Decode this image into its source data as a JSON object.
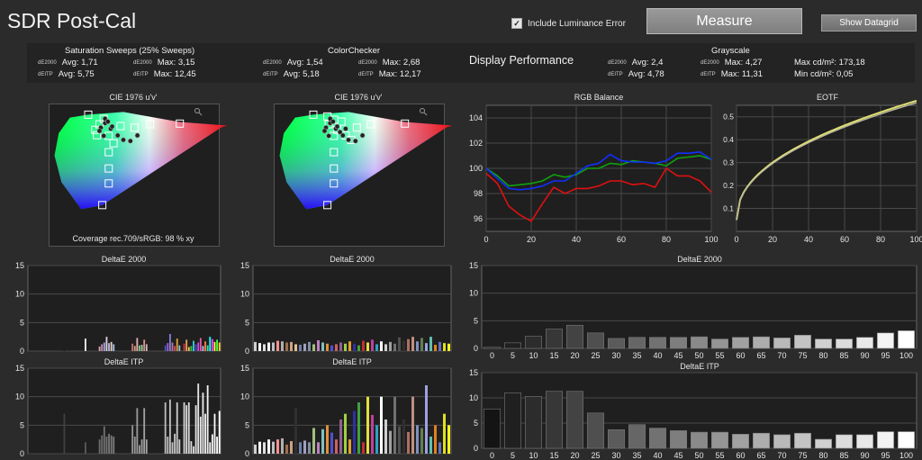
{
  "header": {
    "title": "SDR Post-Cal",
    "include_luminance_label": "Include Luminance Error",
    "measure_label": "Measure",
    "datagrid_label": "Show Datagrid"
  },
  "stats": {
    "saturation": {
      "title": "Saturation Sweeps (25% Sweeps)",
      "r1a_tag": "dE2000",
      "r1a": "Avg: 1,71",
      "r1b_tag": "dE2000",
      "r1b": "Max: 3,15",
      "r2a_tag": "dEITP",
      "r2a": "Avg: 5,75",
      "r2b_tag": "dEITP",
      "r2b": "Max: 12,45"
    },
    "colorchecker": {
      "title": "ColorChecker",
      "r1a_tag": "dE2000",
      "r1a": "Avg: 1,54",
      "r1b_tag": "dE2000",
      "r1b": "Max: 2,68",
      "r2a_tag": "dEITP",
      "r2a": "Avg: 5,18",
      "r2b_tag": "dEITP",
      "r2b": "Max: 12,17"
    },
    "performance_title": "Display Performance",
    "grayscale": {
      "title": "Grayscale",
      "r1a_tag": "dE2000",
      "r1a": "Avg: 2,4",
      "r1b_tag": "dE2000",
      "r1b": "Max: 4,27",
      "r2a_tag": "dEITP",
      "r2a": "Avg: 4,78",
      "r2b_tag": "dEITP",
      "r2b": "Max: 11,31",
      "max_cd": "Max cd/m²:  173,18",
      "min_cd": "Min cd/m²:  0,05"
    }
  },
  "chart_data": [
    {
      "type": "scatter",
      "title": "CIE 1976 u'v'",
      "footer": "Coverage rec.709/sRGB:  98 % xy",
      "targets_uv": [
        [
          0.451,
          0.523
        ],
        [
          0.125,
          0.563
        ],
        [
          0.175,
          0.158
        ],
        [
          0.198,
          0.468
        ],
        [
          0.198,
          0.395
        ],
        [
          0.198,
          0.322
        ],
        [
          0.198,
          0.255
        ],
        [
          0.18,
          0.544
        ],
        [
          0.165,
          0.52
        ],
        [
          0.15,
          0.495
        ],
        [
          0.156,
          0.471
        ],
        [
          0.24,
          0.512
        ],
        [
          0.29,
          0.505
        ],
        [
          0.345,
          0.52
        ],
        [
          0.215,
          0.435
        ]
      ],
      "measured_uv": [
        [
          0.205,
          0.5
        ],
        [
          0.185,
          0.525
        ],
        [
          0.17,
          0.505
        ],
        [
          0.165,
          0.49
        ],
        [
          0.18,
          0.468
        ],
        [
          0.23,
          0.47
        ],
        [
          0.25,
          0.45
        ],
        [
          0.275,
          0.445
        ],
        [
          0.3,
          0.47
        ],
        [
          0.21,
          0.51
        ],
        [
          0.185,
          0.545
        ],
        [
          0.195,
          0.532
        ]
      ]
    },
    {
      "type": "scatter",
      "title": "CIE 1976 u'v'",
      "targets_uv": [
        [
          0.451,
          0.523
        ],
        [
          0.125,
          0.563
        ],
        [
          0.175,
          0.158
        ],
        [
          0.198,
          0.468
        ],
        [
          0.198,
          0.395
        ],
        [
          0.198,
          0.322
        ],
        [
          0.198,
          0.255
        ],
        [
          0.225,
          0.532
        ],
        [
          0.18,
          0.52
        ],
        [
          0.21,
          0.495
        ],
        [
          0.24,
          0.47
        ],
        [
          0.28,
          0.505
        ],
        [
          0.33,
          0.52
        ],
        [
          0.26,
          0.45
        ],
        [
          0.175,
          0.555
        ],
        [
          0.2,
          0.54
        ]
      ],
      "measured_uv": [
        [
          0.205,
          0.5
        ],
        [
          0.185,
          0.525
        ],
        [
          0.17,
          0.505
        ],
        [
          0.165,
          0.49
        ],
        [
          0.18,
          0.468
        ],
        [
          0.23,
          0.47
        ],
        [
          0.25,
          0.45
        ],
        [
          0.275,
          0.445
        ],
        [
          0.3,
          0.47
        ],
        [
          0.21,
          0.51
        ],
        [
          0.185,
          0.545
        ],
        [
          0.195,
          0.532
        ],
        [
          0.24,
          0.5
        ],
        [
          0.22,
          0.485
        ]
      ]
    },
    {
      "type": "line",
      "title": "RGB Balance",
      "x": [
        0,
        5,
        10,
        15,
        20,
        25,
        30,
        35,
        40,
        45,
        50,
        55,
        60,
        65,
        70,
        75,
        80,
        85,
        90,
        95,
        100
      ],
      "xlim": [
        0,
        100
      ],
      "ylim": [
        95,
        105
      ],
      "xticks": [
        0,
        20,
        40,
        60,
        80,
        100
      ],
      "yticks": [
        96,
        98,
        100,
        102,
        104
      ],
      "series": [
        {
          "color": "#e01010",
          "values": [
            99.6,
            98.8,
            97.0,
            96.3,
            95.8,
            97.2,
            98.5,
            98.0,
            98.4,
            98.4,
            98.6,
            99.0,
            99.0,
            98.7,
            98.8,
            98.5,
            100.0,
            99.4,
            99.4,
            99.0,
            98.1
          ]
        },
        {
          "color": "#10a010",
          "values": [
            100.0,
            99.4,
            98.6,
            98.7,
            98.8,
            99.0,
            99.5,
            99.3,
            99.5,
            100.0,
            100.0,
            100.4,
            100.3,
            100.6,
            100.5,
            100.4,
            100.2,
            100.8,
            100.9,
            101.0,
            100.7
          ]
        },
        {
          "color": "#1030ff",
          "values": [
            100.0,
            99.2,
            98.4,
            98.3,
            98.4,
            98.6,
            99.0,
            99.0,
            99.6,
            100.2,
            100.4,
            101.1,
            100.6,
            100.5,
            100.5,
            100.4,
            100.6,
            101.2,
            101.2,
            101.3,
            100.7
          ]
        }
      ]
    },
    {
      "type": "line",
      "title": "EOTF",
      "xlim": [
        0,
        100
      ],
      "ylim": [
        0,
        0.55
      ],
      "xticks": [
        0,
        20,
        40,
        60,
        80,
        100
      ],
      "yticks": [
        0.1,
        0.2,
        0.3,
        0.4,
        0.5
      ],
      "gamma": 2.2
    },
    {
      "type": "bar",
      "title": "DeltaE 2000",
      "ylim": [
        0,
        15
      ],
      "yticks": [
        0,
        5,
        10,
        15
      ],
      "values": [
        0,
        0,
        0,
        0,
        0,
        0,
        0,
        0,
        0,
        0,
        0,
        0,
        0,
        0,
        0,
        0.2,
        0,
        0,
        0,
        0,
        0,
        0,
        0,
        0,
        2.2,
        0,
        0,
        0,
        0,
        0,
        0.8,
        1.2,
        1.5,
        2.5,
        1.4,
        1.6,
        1.2,
        0,
        0,
        0,
        0,
        0,
        0,
        0,
        1.3,
        0.9,
        2.3,
        1.0,
        1.1,
        2.0,
        1.2,
        0,
        0,
        0,
        0,
        0,
        0,
        0,
        1.0,
        1.4,
        3.0,
        1.5,
        0.9,
        2.2,
        1.0,
        0,
        1.3,
        2.0,
        0.7,
        0.9,
        1.8,
        1.2,
        1.5,
        2.3,
        0.9,
        1.7,
        1.0,
        2.5,
        2.1,
        1.6,
        2.0,
        1.5
      ],
      "colors": [
        "#606060",
        "#888",
        "#aaa",
        "#ccc",
        "#e8e8e8",
        "#606060",
        "#888",
        "#aaa",
        "#ccc",
        "#e8e8e8",
        "#606060",
        "#888",
        "#aaa",
        "#ccc",
        "#e8e8e8",
        "#1a1a1a",
        "#303030",
        "#606060",
        "#888",
        "#aaa",
        "#ccc",
        "#e8e8e8",
        "#f5f5f5",
        "#fff",
        "#f0f0f0",
        "#1a1a1a",
        "#303030",
        "#606060",
        "#888",
        "#aaa",
        "#d8a8a8",
        "#c890c0",
        "#a8a8d8",
        "#e0d0e0",
        "#b8b8e8",
        "#e8d8b8",
        "#a8c8e8",
        "#1a1a1a",
        "#303030",
        "#606060",
        "#888",
        "#aaa",
        "#ccc",
        "#e8e8e8",
        "#d07070",
        "#c8a080",
        "#e8b0b0",
        "#80c880",
        "#a0d0a0",
        "#e09090",
        "#c0c0c0",
        "#1a1a1a",
        "#303030",
        "#606060",
        "#888",
        "#aaa",
        "#ccc",
        "#e8e8e8",
        "#5050c0",
        "#a060d0",
        "#8080e0",
        "#c070b0",
        "#d05050",
        "#e0a040",
        "#90c0e0",
        "#1a1a1a",
        "#e03030",
        "#e0a060",
        "#e0d060",
        "#40c040",
        "#40d0d0",
        "#3050e0",
        "#e040e0",
        "#e060a0",
        "#c0c0ff",
        "#ff8040",
        "#40e0a0",
        "#20ffff",
        "#ff40ff",
        "#ffff40",
        "#40ff40",
        "#ffd020"
      ]
    },
    {
      "type": "bar",
      "title": "DeltaE 2000",
      "ylim": [
        0,
        15
      ],
      "yticks": [
        0,
        5,
        10,
        15
      ],
      "values": [
        1.6,
        1.4,
        1.2,
        1.5,
        1.5,
        1.8,
        1.7,
        1.5,
        1.6,
        1.2,
        1.1,
        1.3,
        1.6,
        1.2,
        1.9,
        1.5,
        1.3,
        1.0,
        1.2,
        1.5,
        1.3,
        1.7,
        1.3,
        1.0,
        1.8,
        1.5,
        2.0,
        1.2,
        1.7,
        1.2,
        1.6,
        1.3,
        2.4,
        1.8,
        2.1,
        2.5,
        1.7,
        2.3,
        1.4,
        2.5,
        1.1,
        1.6,
        1.4,
        1.3
      ],
      "colors": [
        "#d0d0d0",
        "#fff",
        "#e0e0e0",
        "#f5f5f5",
        "#c0c0c0",
        "#ff9090",
        "#b0b0b0",
        "#a07050",
        "#d0a080",
        "#e0c090",
        "#7080b0",
        "#a0a0c0",
        "#8090a0",
        "#a0c080",
        "#c080c0",
        "#80c0c0",
        "#e09040",
        "#5050d0",
        "#d06060",
        "#906090",
        "#a0d040",
        "#e0a030",
        "#3030a0",
        "#40a040",
        "#c03030",
        "#e0e040",
        "#c040a0",
        "#30a0c0",
        "#ffffff",
        "#d0d0d0",
        "#a0a0a0",
        "#707070",
        "#505050",
        "#303030",
        "#b07060",
        "#c09080",
        "#8090c0",
        "#608050",
        "#a0a0e0",
        "#60c0b0",
        "#e08020",
        "#6070c0",
        "#e0e020",
        "#ffff20"
      ]
    },
    {
      "type": "bar",
      "title": "DeltaE 2000",
      "categories": [
        "0",
        "5",
        "10",
        "15",
        "20",
        "25",
        "30",
        "35",
        "40",
        "45",
        "50",
        "55",
        "60",
        "65",
        "70",
        "75",
        "80",
        "85",
        "90",
        "95",
        "100"
      ],
      "ylim": [
        0,
        15
      ],
      "yticks": [
        0,
        5,
        10,
        15
      ],
      "values": [
        0.2,
        1.0,
        2.2,
        3.5,
        4.2,
        2.8,
        1.8,
        2.0,
        2.0,
        2.0,
        2.1,
        1.7,
        2.0,
        2.1,
        1.9,
        2.4,
        1.7,
        1.7,
        2.0,
        2.8,
        3.2
      ]
    },
    {
      "type": "bar",
      "title": "DeltaE ITP",
      "ylim": [
        0,
        15
      ],
      "yticks": [
        0,
        5,
        10,
        15
      ],
      "values": [
        0,
        0,
        0,
        0,
        0,
        0,
        0,
        0,
        0,
        0,
        0,
        0,
        0,
        0,
        0,
        7.0,
        0,
        0,
        0,
        0,
        0,
        0,
        0,
        0,
        2.0,
        0,
        0,
        0,
        0,
        0,
        2.5,
        3.2,
        4.8,
        3.0,
        3.5,
        3.2,
        3.0,
        0,
        0,
        0,
        0,
        0,
        0,
        0,
        5.0,
        3.0,
        8.0,
        1.5,
        2.5,
        8.0,
        2.5,
        0,
        0,
        0,
        0,
        0,
        0,
        0,
        9.0,
        3.0,
        9.5,
        2.0,
        3.5,
        9.0,
        2.5,
        0,
        9.0,
        8.5,
        9.0,
        2.2,
        1.3,
        8.5,
        12.3,
        6.5,
        10.7,
        7.0,
        12.0,
        2.0,
        3.4,
        7.0,
        3.0,
        7.5
      ]
    },
    {
      "type": "bar",
      "title": "DeltaE ITP",
      "ylim": [
        0,
        15
      ],
      "yticks": [
        0,
        5,
        10,
        15
      ],
      "values": [
        1.6,
        2.1,
        2.0,
        2.5,
        2.1,
        2.5,
        2.7,
        1.6,
        2.2,
        8.0,
        2.0,
        2.3,
        2.0,
        4.5,
        2.0,
        4.3,
        5.0,
        3.7,
        2.5,
        6.0,
        7.0,
        2.5,
        7.5,
        9.0,
        2.0,
        10.0,
        6.8,
        5.0,
        10.0,
        6.0,
        4.0,
        10.0,
        4.8,
        6.0,
        3.8,
        10.0,
        5.0,
        4.5,
        12.0,
        3.0,
        5.0,
        2.0,
        7.0,
        5.0
      ],
      "colors": [
        "#d0d0d0",
        "#fff",
        "#e0e0e0",
        "#f5f5f5",
        "#c0c0c0",
        "#ff9090",
        "#b0b0b0",
        "#a07050",
        "#d0a080",
        "#303030",
        "#7080b0",
        "#a0a0c0",
        "#8090a0",
        "#a0c080",
        "#c080c0",
        "#80c0c0",
        "#e09040",
        "#5050d0",
        "#d06060",
        "#906090",
        "#a0d040",
        "#e0a030",
        "#3030a0",
        "#40a040",
        "#c03030",
        "#e0e040",
        "#c040a0",
        "#30a0c0",
        "#ffffff",
        "#d0d0d0",
        "#a0a0a0",
        "#707070",
        "#505050",
        "#303030",
        "#b07060",
        "#c09080",
        "#8090c0",
        "#608050",
        "#a0a0e0",
        "#60c0b0",
        "#e08020",
        "#6070c0",
        "#e0e020",
        "#ffff20"
      ]
    },
    {
      "type": "bar",
      "title": "DeltaE ITP",
      "categories": [
        "0",
        "5",
        "10",
        "15",
        "20",
        "25",
        "30",
        "35",
        "40",
        "45",
        "50",
        "55",
        "60",
        "65",
        "70",
        "75",
        "80",
        "85",
        "90",
        "95",
        "100"
      ],
      "ylim": [
        0,
        15
      ],
      "yticks": [
        0,
        5,
        10,
        15
      ],
      "values": [
        7.8,
        11.0,
        10.3,
        11.3,
        11.3,
        7.0,
        3.7,
        4.7,
        4.0,
        3.5,
        3.2,
        3.2,
        2.8,
        3.0,
        2.7,
        3.0,
        1.8,
        2.7,
        2.7,
        3.3,
        3.3
      ]
    }
  ]
}
